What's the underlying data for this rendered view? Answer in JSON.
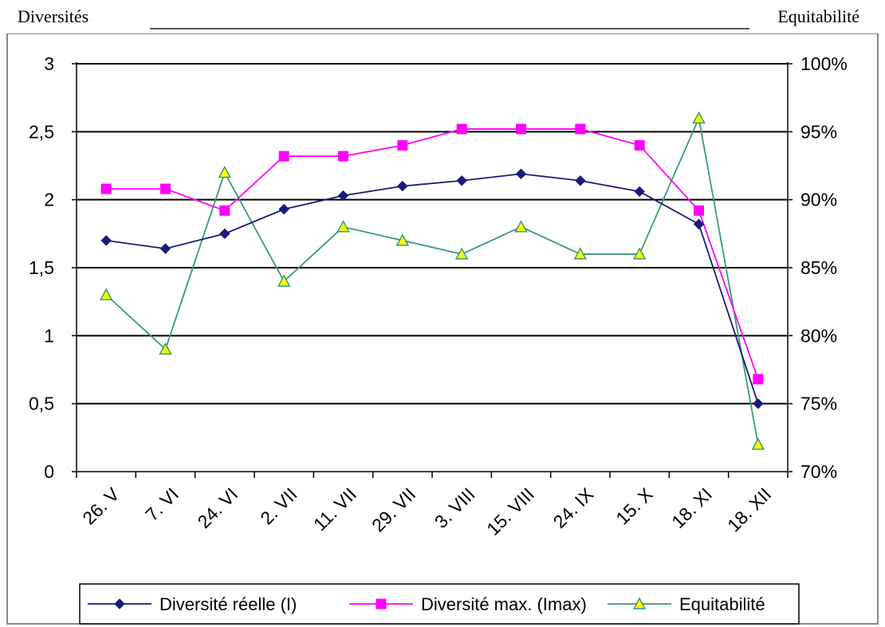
{
  "chart_data": {
    "type": "line",
    "left_axis_title": "Diversités",
    "right_axis_title": "Equitabilité",
    "categories": [
      "26. V",
      "7. VI",
      "24. VI",
      "2. VII",
      "11. VII",
      "29. VII",
      "3. VIII",
      "15. VIII",
      "24. IX",
      "15. X",
      "18. XI",
      "18. XII"
    ],
    "y_left": {
      "min": 0,
      "max": 3,
      "ticks": [
        "0",
        "0,5",
        "1",
        "1,5",
        "2",
        "2,5",
        "3"
      ]
    },
    "y_right": {
      "min": 70,
      "max": 100,
      "ticks": [
        "70%",
        "75%",
        "80%",
        "85%",
        "90%",
        "95%",
        "100%"
      ]
    },
    "grid": true,
    "legend_position": "bottom",
    "series": [
      {
        "name": "Diversité réelle (I)",
        "axis": "left",
        "marker": "diamond",
        "color": "#1a1a7a",
        "values": [
          1.7,
          1.64,
          1.75,
          1.93,
          2.03,
          2.1,
          2.14,
          2.19,
          2.14,
          2.06,
          1.82,
          0.5
        ]
      },
      {
        "name": "Diversité max. (Imax)",
        "axis": "left",
        "marker": "square",
        "color": "#ff00ff",
        "values": [
          2.08,
          2.08,
          1.92,
          2.32,
          2.32,
          2.4,
          2.52,
          2.52,
          2.52,
          2.4,
          1.92,
          0.68
        ]
      },
      {
        "name": "Equitabilité",
        "axis": "right",
        "marker": "triangle",
        "color": "#3a9a7a",
        "marker_fill": "#ffff00",
        "values": [
          83,
          79,
          92,
          84,
          88,
          87,
          86,
          88,
          86,
          86,
          96,
          72
        ]
      }
    ]
  }
}
